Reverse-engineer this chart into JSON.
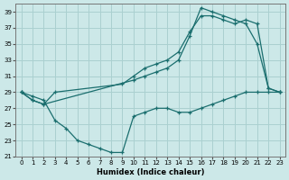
{
  "xlabel": "Humidex (Indice chaleur)",
  "bg_color": "#cce8e8",
  "grid_color": "#aad0d0",
  "line_color": "#1a6e6e",
  "xlim": [
    -0.5,
    23.5
  ],
  "ylim": [
    21,
    40
  ],
  "xticks": [
    0,
    1,
    2,
    3,
    4,
    5,
    6,
    7,
    8,
    9,
    10,
    11,
    12,
    13,
    14,
    15,
    16,
    17,
    18,
    19,
    20,
    21,
    22,
    23
  ],
  "yticks": [
    21,
    23,
    25,
    27,
    29,
    31,
    33,
    35,
    37,
    39
  ],
  "line1_x": [
    0,
    1,
    2,
    10,
    11,
    12,
    13,
    14,
    15,
    16,
    17,
    18,
    19,
    20,
    21,
    22,
    23
  ],
  "line1_y": [
    29,
    28,
    27.5,
    30.5,
    31,
    31.5,
    32,
    33,
    36,
    39.5,
    39,
    38.5,
    38,
    37.5,
    35,
    29.5,
    29
  ],
  "line2_x": [
    0,
    1,
    2,
    3,
    4,
    5,
    6,
    7,
    8,
    9,
    10,
    11,
    12,
    13,
    14,
    15,
    16,
    17,
    18,
    19,
    20,
    21,
    22,
    23
  ],
  "line2_y": [
    29,
    28.5,
    28,
    25.5,
    24.5,
    23,
    22.5,
    22,
    21.5,
    21.5,
    26,
    26.5,
    27,
    27,
    26.5,
    26.5,
    27,
    27.5,
    28,
    28.5,
    29,
    29,
    29,
    29
  ],
  "line3_x": [
    0,
    1,
    2,
    3,
    9,
    10,
    11,
    12,
    13,
    14,
    15,
    16,
    17,
    18,
    19,
    20,
    21,
    22,
    23
  ],
  "line3_y": [
    29,
    28,
    27.5,
    29,
    30,
    31,
    32,
    32.5,
    33,
    34,
    36.5,
    38.5,
    38.5,
    38,
    37.5,
    38,
    37.5,
    29.5,
    29
  ]
}
